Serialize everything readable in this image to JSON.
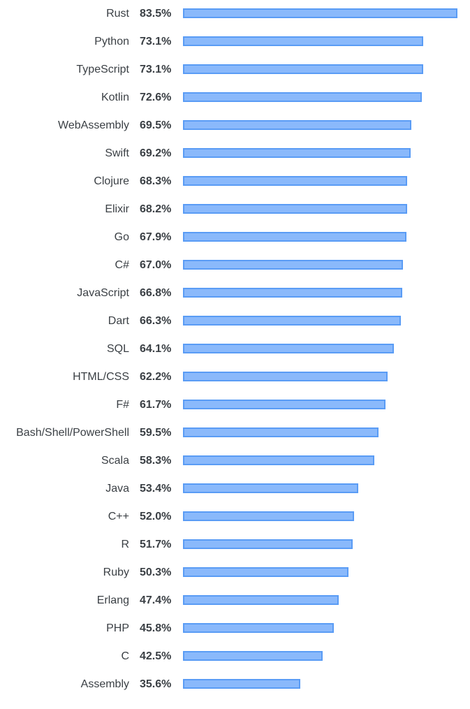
{
  "chart_data": {
    "type": "bar",
    "orientation": "horizontal",
    "categories": [
      "Rust",
      "Python",
      "TypeScript",
      "Kotlin",
      "WebAssembly",
      "Swift",
      "Clojure",
      "Elixir",
      "Go",
      "C#",
      "JavaScript",
      "Dart",
      "SQL",
      "HTML/CSS",
      "F#",
      "Bash/Shell/PowerShell",
      "Scala",
      "Java",
      "C++",
      "R",
      "Ruby",
      "Erlang",
      "PHP",
      "C",
      "Assembly"
    ],
    "values": [
      83.5,
      73.1,
      73.1,
      72.6,
      69.5,
      69.2,
      68.3,
      68.2,
      67.9,
      67.0,
      66.8,
      66.3,
      64.1,
      62.2,
      61.7,
      59.5,
      58.3,
      53.4,
      52.0,
      51.7,
      50.3,
      47.4,
      45.8,
      42.5,
      35.6
    ],
    "value_labels": [
      "83.5%",
      "73.1%",
      "73.1%",
      "72.6%",
      "69.5%",
      "69.2%",
      "68.3%",
      "68.2%",
      "67.9%",
      "67.0%",
      "66.8%",
      "66.3%",
      "64.1%",
      "62.2%",
      "61.7%",
      "59.5%",
      "58.3%",
      "53.4%",
      "52.0%",
      "51.7%",
      "50.3%",
      "47.4%",
      "45.8%",
      "42.5%",
      "35.6%"
    ],
    "xlim": [
      0,
      83.5
    ],
    "grid": false,
    "legend": "none",
    "colors": {
      "bar_fill": "#8ab9fb",
      "bar_border": "#5a9cf5",
      "text": "#3b4045"
    }
  }
}
